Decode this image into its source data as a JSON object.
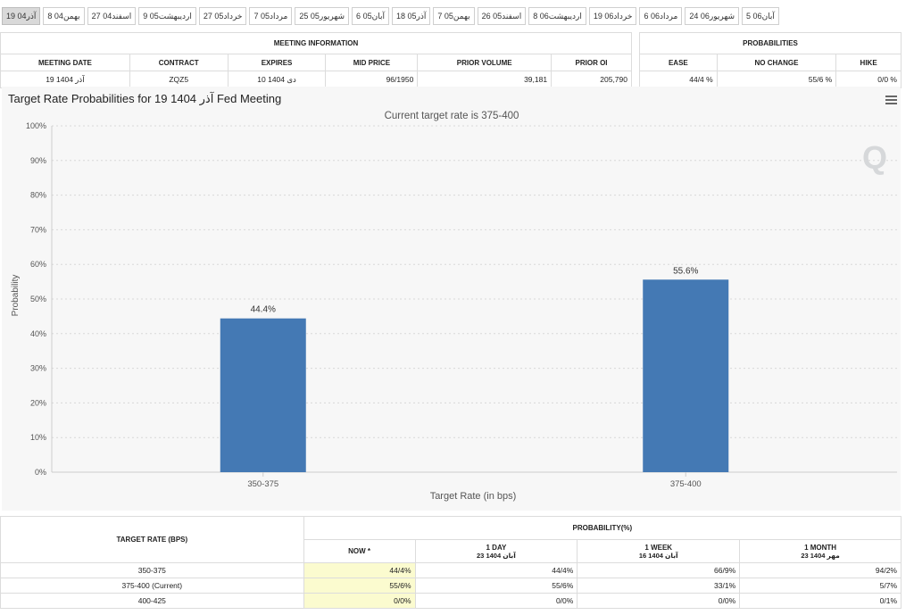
{
  "tabs": [
    "19 آذر04",
    "بهمن04 8",
    "اسفند04 27",
    "اردیبهشت05 9",
    "خرداد05 27",
    "مرداد05 7",
    "شهریور05 25",
    "آبان05 6",
    "آذر05 18",
    "بهمن05 7",
    "اسفند05 26",
    "اردیبهشت06 8",
    "خرداد06 19",
    "مرداد06 6",
    "شهریور06 24",
    "آبان06 5"
  ],
  "meeting": {
    "title": "MEETING INFORMATION",
    "headers": [
      "MEETING DATE",
      "CONTRACT",
      "EXPIRES",
      "MID PRICE",
      "PRIOR VOLUME",
      "PRIOR OI"
    ],
    "row": [
      "19 آذر 1404",
      "ZQZ5",
      "10 دی 1404",
      "96/1950",
      "39,181",
      "205,790"
    ]
  },
  "probabilities": {
    "title": "PROBABILITIES",
    "headers": [
      "EASE",
      "NO CHANGE",
      "HIKE"
    ],
    "row": [
      "44/4 %",
      "55/6 %",
      "0/0 %"
    ]
  },
  "chart_title": "Target Rate Probabilities for 19 آذر 1404 Fed Meeting",
  "colors": {
    "bar": "#4479b4",
    "panel": "#f7f7f7",
    "now_highlight": "#fbfbcf"
  },
  "chart_data": {
    "type": "bar",
    "subtitle": "Current target rate is 375-400",
    "xlabel": "Target Rate (in bps)",
    "ylabel": "Probability",
    "categories": [
      "350-375",
      "375-400"
    ],
    "values": [
      44.4,
      55.6
    ],
    "value_labels": [
      "44.4%",
      "55.6%"
    ],
    "ylim": [
      0,
      100
    ],
    "yticks": [
      "0%",
      "10%",
      "20%",
      "30%",
      "40%",
      "50%",
      "60%",
      "70%",
      "80%",
      "90%",
      "100%"
    ],
    "grid": true
  },
  "prob_table": {
    "col_target": "TARGET RATE (BPS)",
    "col_prob": "PROBABILITY(%)",
    "now_label": "NOW *",
    "periods": [
      {
        "label": "1 DAY",
        "date": "23 آبان 1404"
      },
      {
        "label": "1 WEEK",
        "date": "16 آبان 1404"
      },
      {
        "label": "1 MONTH",
        "date": "23 مهر 1404"
      }
    ],
    "rows": [
      {
        "rate": "350-375",
        "now": "44/4%",
        "day": "44/4%",
        "week": "66/9%",
        "month": "94/2%"
      },
      {
        "rate": "375-400 (Current)",
        "now": "55/6%",
        "day": "55/6%",
        "week": "33/1%",
        "month": "5/7%"
      },
      {
        "rate": "400-425",
        "now": "0/0%",
        "day": "0/0%",
        "week": "0/0%",
        "month": "0/1%"
      }
    ]
  }
}
